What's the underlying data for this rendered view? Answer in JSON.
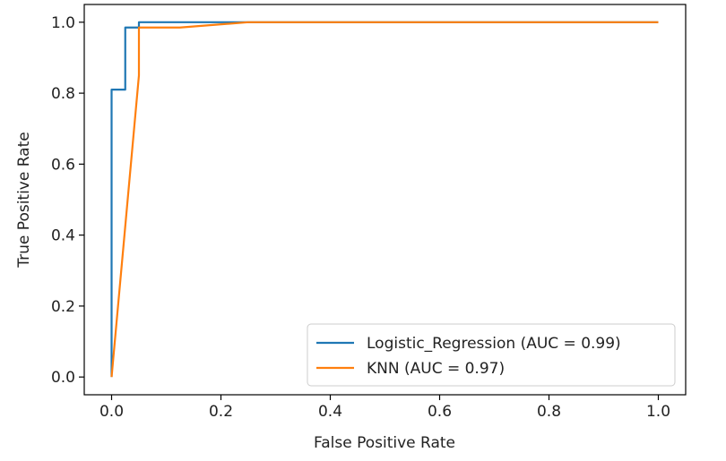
{
  "chart_data": {
    "type": "line",
    "title": "",
    "xlabel": "False Positive Rate",
    "ylabel": "True Positive Rate",
    "xlim": [
      -0.05,
      1.05
    ],
    "ylim": [
      -0.05,
      1.05
    ],
    "xticks": [
      0.0,
      0.2,
      0.4,
      0.6,
      0.8,
      1.0
    ],
    "yticks": [
      0.0,
      0.2,
      0.4,
      0.6,
      0.8,
      1.0
    ],
    "xtick_labels": [
      "0.0",
      "0.2",
      "0.4",
      "0.6",
      "0.8",
      "1.0"
    ],
    "ytick_labels": [
      "0.0",
      "0.2",
      "0.4",
      "0.6",
      "0.8",
      "1.0"
    ],
    "grid": false,
    "legend_position": "lower-right",
    "series": [
      {
        "name": "Logistic_Regression (AUC = 0.99)",
        "color": "#1f77b4",
        "x": [
          0.0,
          0.0,
          0.0,
          0.025,
          0.025,
          0.05,
          0.05,
          1.0
        ],
        "y": [
          0.0,
          0.0,
          0.81,
          0.81,
          0.985,
          0.985,
          1.0,
          1.0
        ]
      },
      {
        "name": "KNN (AUC = 0.97)",
        "color": "#ff7f0e",
        "x": [
          0.0,
          0.05,
          0.05,
          0.125,
          0.25,
          1.0
        ],
        "y": [
          0.0,
          0.85,
          0.985,
          0.985,
          1.0,
          1.0
        ]
      }
    ]
  }
}
